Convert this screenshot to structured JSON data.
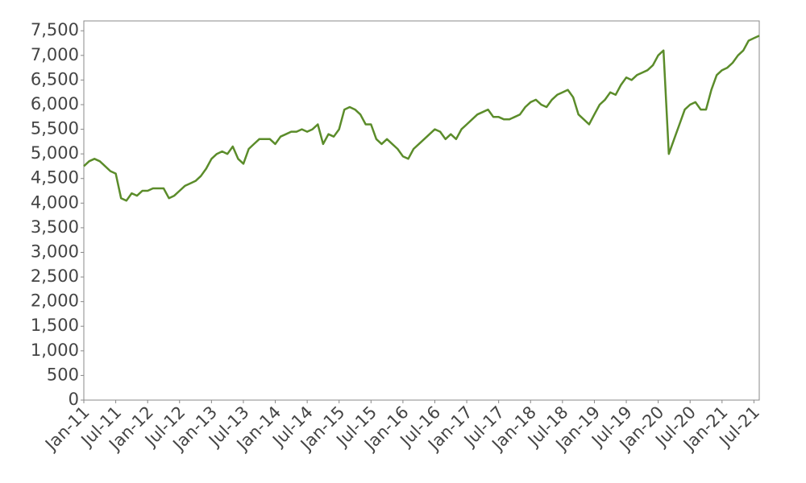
{
  "chart_data": {
    "type": "line",
    "categories": [
      "Jan-11",
      null,
      null,
      null,
      null,
      null,
      "Jul-11",
      null,
      null,
      null,
      null,
      null,
      "Jan-12",
      null,
      null,
      null,
      null,
      null,
      "Jul-12",
      null,
      null,
      null,
      null,
      null,
      "Jan-13",
      null,
      null,
      null,
      null,
      null,
      "Jul-13",
      null,
      null,
      null,
      null,
      null,
      "Jan-14",
      null,
      null,
      null,
      null,
      null,
      "Jul-14",
      null,
      null,
      null,
      null,
      null,
      "Jan-15",
      null,
      null,
      null,
      null,
      null,
      "Jul-15",
      null,
      null,
      null,
      null,
      null,
      "Jan-16",
      null,
      null,
      null,
      null,
      null,
      "Jul-16",
      null,
      null,
      null,
      null,
      null,
      "Jan-17",
      null,
      null,
      null,
      null,
      null,
      "Jul-17",
      null,
      null,
      null,
      null,
      null,
      "Jan-18",
      null,
      null,
      null,
      null,
      null,
      "Jul-18",
      null,
      null,
      null,
      null,
      null,
      "Jan-19",
      null,
      null,
      null,
      null,
      null,
      "Jul-19",
      null,
      null,
      null,
      null,
      null,
      "Jan-20",
      null,
      null,
      null,
      null,
      null,
      "Jul-20",
      null,
      null,
      null,
      null,
      null,
      "Jan-21",
      null,
      null,
      null,
      null,
      null,
      "Jul-21",
      null
    ],
    "values": [
      4750,
      4850,
      4900,
      4850,
      4750,
      4650,
      4600,
      4100,
      4050,
      4200,
      4150,
      4250,
      4250,
      4300,
      4300,
      4300,
      4100,
      4150,
      4250,
      4350,
      4400,
      4450,
      4550,
      4700,
      4900,
      5000,
      5050,
      5000,
      5150,
      4900,
      4800,
      5100,
      5200,
      5300,
      5300,
      5300,
      5200,
      5350,
      5400,
      5450,
      5450,
      5500,
      5450,
      5500,
      5600,
      5200,
      5400,
      5350,
      5500,
      5900,
      5950,
      5900,
      5800,
      5600,
      5600,
      5300,
      5200,
      5300,
      5200,
      5100,
      4950,
      4900,
      5100,
      5200,
      5300,
      5400,
      5500,
      5450,
      5300,
      5400,
      5300,
      5500,
      5600,
      5700,
      5800,
      5850,
      5900,
      5750,
      5750,
      5700,
      5700,
      5750,
      5800,
      5950,
      6050,
      6100,
      6000,
      5950,
      6100,
      6200,
      6250,
      6300,
      6150,
      5800,
      5700,
      5600,
      5800,
      6000,
      6100,
      6250,
      6200,
      6400,
      6550,
      6500,
      6600,
      6650,
      6700,
      6800,
      7000,
      7100,
      5000,
      5300,
      5600,
      5900,
      6000,
      6050,
      5900,
      5900,
      6300,
      6600,
      6700,
      6750,
      6850,
      7000,
      7100,
      7300,
      7350,
      7400
    ],
    "color": "#5b8c2a",
    "ylim": [
      0,
      7700
    ],
    "yticks": [
      0,
      500,
      {
        "value": 1000,
        "label": "1,000"
      },
      {
        "value": 1500,
        "label": "1,500"
      },
      {
        "value": 2000,
        "label": "2,000"
      },
      {
        "value": 2500,
        "label": "2,500"
      },
      {
        "value": 3000,
        "label": "3,000"
      },
      {
        "value": 3500,
        "label": "3,500"
      },
      {
        "value": 4000,
        "label": "4,000"
      },
      {
        "value": 4500,
        "label": "4,500"
      },
      {
        "value": 5000,
        "label": "5,000"
      },
      {
        "value": 5500,
        "label": "5,500"
      },
      {
        "value": 6000,
        "label": "6,000"
      },
      {
        "value": 6500,
        "label": "6,500"
      },
      {
        "value": 7000,
        "label": "7,000"
      },
      {
        "value": 7500,
        "label": "7,500"
      }
    ],
    "grid": false
  }
}
